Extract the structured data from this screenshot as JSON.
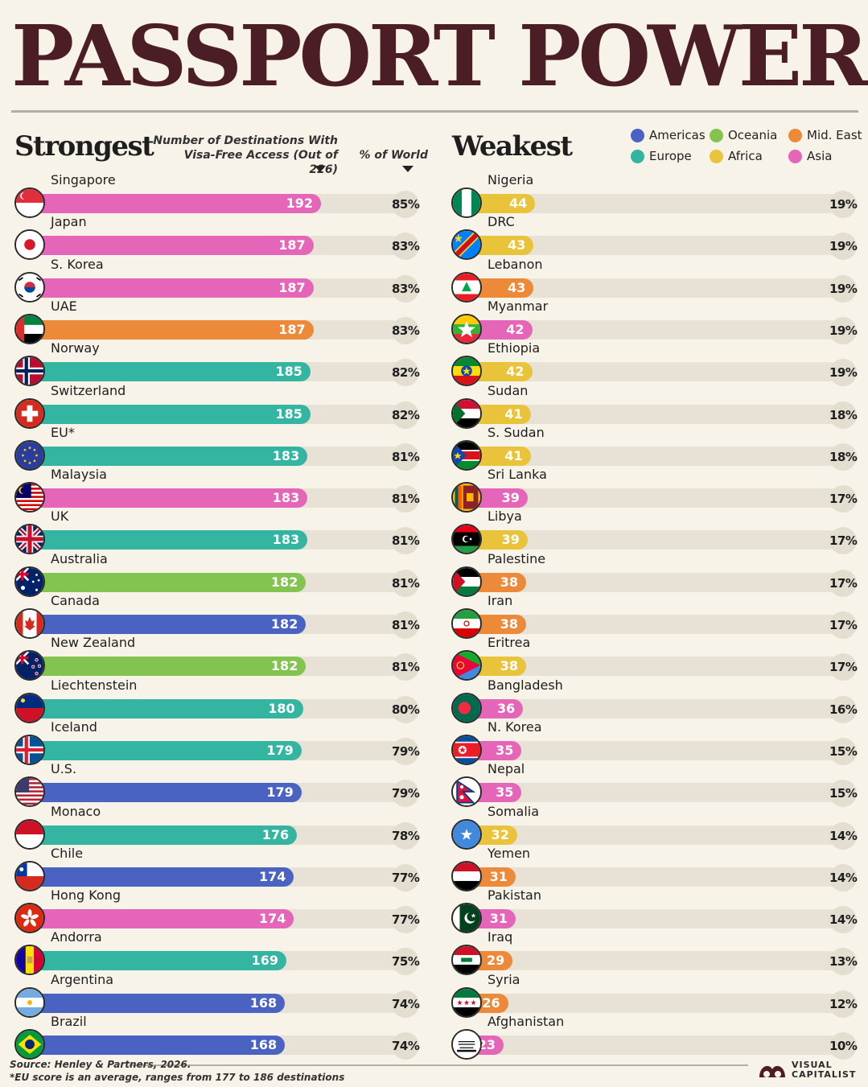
{
  "title": "PASSPORT POWER",
  "strongest_header": "Strongest",
  "weakest_header": "Weakest",
  "col_dest_label": "Number of Destinations With Visa-Free Access (Out of 226)",
  "col_pct_label": "% of World",
  "legend": [
    {
      "label": "Americas",
      "color": "#4a63c2"
    },
    {
      "label": "Oceania",
      "color": "#83c451"
    },
    {
      "label": "Mid. East",
      "color": "#ec8a3a"
    },
    {
      "label": "Europe",
      "color": "#33b5a2"
    },
    {
      "label": "Africa",
      "color": "#e9c43a"
    },
    {
      "label": "Asia",
      "color": "#e565b8"
    }
  ],
  "region_colors": {
    "Americas": "#4a63c2",
    "Oceania": "#83c451",
    "Mid. East": "#ec8a3a",
    "Europe": "#33b5a2",
    "Africa": "#e9c43a",
    "Asia": "#e565b8"
  },
  "footer": {
    "source": "Source: Henley & Partners, 2026.",
    "note": "*EU score is an average, ranges from 177 to 186 destinations",
    "brand": "VISUAL CAPITALIST"
  },
  "chart_data": [
    {
      "type": "bar",
      "title": "Strongest",
      "xlabel": "Number of Destinations With Visa-Free Access (Out of 226)",
      "xlim": [
        0,
        226
      ],
      "categories": [
        "Singapore",
        "Japan",
        "S. Korea",
        "UAE",
        "Norway",
        "Switzerland",
        "EU*",
        "Malaysia",
        "UK",
        "Australia",
        "Canada",
        "New Zealand",
        "Liechtenstein",
        "Iceland",
        "U.S.",
        "Monaco",
        "Chile",
        "Hong Kong",
        "Andorra",
        "Argentina",
        "Brazil"
      ],
      "values": [
        192,
        187,
        187,
        187,
        185,
        185,
        183,
        183,
        183,
        182,
        182,
        182,
        180,
        179,
        179,
        176,
        174,
        174,
        169,
        168,
        168
      ],
      "percent_of_world": [
        "85%",
        "83%",
        "83%",
        "83%",
        "82%",
        "82%",
        "81%",
        "81%",
        "81%",
        "81%",
        "81%",
        "81%",
        "80%",
        "79%",
        "79%",
        "78%",
        "77%",
        "77%",
        "75%",
        "74%",
        "74%"
      ],
      "regions": [
        "Asia",
        "Asia",
        "Asia",
        "Mid. East",
        "Europe",
        "Europe",
        "Europe",
        "Asia",
        "Europe",
        "Oceania",
        "Americas",
        "Oceania",
        "Europe",
        "Europe",
        "Americas",
        "Europe",
        "Americas",
        "Asia",
        "Europe",
        "Americas",
        "Americas"
      ],
      "flags": [
        "singapore-flag",
        "japan-flag",
        "south-korea-flag",
        "uae-flag",
        "norway-flag",
        "switzerland-flag",
        "eu-flag",
        "malaysia-flag",
        "uk-flag",
        "australia-flag",
        "canada-flag",
        "new-zealand-flag",
        "liechtenstein-flag",
        "iceland-flag",
        "us-flag",
        "monaco-flag",
        "chile-flag",
        "hong-kong-flag",
        "andorra-flag",
        "argentina-flag",
        "brazil-flag"
      ]
    },
    {
      "type": "bar",
      "title": "Weakest",
      "xlabel": "Number of Destinations With Visa-Free Access (Out of 226)",
      "xlim": [
        0,
        226
      ],
      "categories": [
        "Nigeria",
        "DRC",
        "Lebanon",
        "Myanmar",
        "Ethiopia",
        "Sudan",
        "S. Sudan",
        "Sri Lanka",
        "Libya",
        "Palestine",
        "Iran",
        "Eritrea",
        "Bangladesh",
        "N. Korea",
        "Nepal",
        "Somalia",
        "Yemen",
        "Pakistan",
        "Iraq",
        "Syria",
        "Afghanistan"
      ],
      "values": [
        44,
        43,
        43,
        42,
        42,
        41,
        41,
        39,
        39,
        38,
        38,
        38,
        36,
        35,
        35,
        32,
        31,
        31,
        29,
        26,
        23
      ],
      "percent_of_world": [
        "19%",
        "19%",
        "19%",
        "19%",
        "19%",
        "18%",
        "18%",
        "17%",
        "17%",
        "17%",
        "17%",
        "17%",
        "16%",
        "15%",
        "15%",
        "14%",
        "14%",
        "14%",
        "13%",
        "12%",
        "10%"
      ],
      "regions": [
        "Africa",
        "Africa",
        "Mid. East",
        "Asia",
        "Africa",
        "Africa",
        "Africa",
        "Asia",
        "Africa",
        "Mid. East",
        "Mid. East",
        "Africa",
        "Asia",
        "Asia",
        "Asia",
        "Africa",
        "Mid. East",
        "Asia",
        "Mid. East",
        "Mid. East",
        "Asia"
      ],
      "flags": [
        "nigeria-flag",
        "drc-flag",
        "lebanon-flag",
        "myanmar-flag",
        "ethiopia-flag",
        "sudan-flag",
        "south-sudan-flag",
        "sri-lanka-flag",
        "libya-flag",
        "palestine-flag",
        "iran-flag",
        "eritrea-flag",
        "bangladesh-flag",
        "north-korea-flag",
        "nepal-flag",
        "somalia-flag",
        "yemen-flag",
        "pakistan-flag",
        "iraq-flag",
        "syria-flag",
        "afghanistan-flag"
      ]
    }
  ]
}
